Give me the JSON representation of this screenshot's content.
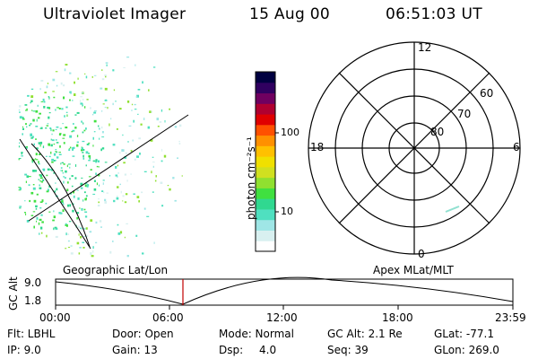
{
  "header": {
    "instrument": "Ultraviolet Imager",
    "date": "15 Aug 00",
    "time": "06:51:03 UT"
  },
  "colorbar": {
    "unit_label": "photon cm⁻²s⁻¹",
    "ticks": [
      "100",
      "10"
    ],
    "colors": [
      "#ffffff",
      "#d8f0f0",
      "#9fe6e6",
      "#4fe0c0",
      "#30d890",
      "#40e040",
      "#90e030",
      "#d0e020",
      "#f0e000",
      "#ffc000",
      "#ff9000",
      "#ff5000",
      "#e00000",
      "#b00030",
      "#700060",
      "#300060",
      "#000040"
    ]
  },
  "polar_plot": {
    "mlt_labels": {
      "top": "12",
      "left": "18",
      "right": "6",
      "bottom": "0"
    },
    "lat_labels": [
      "80",
      "70",
      "60"
    ]
  },
  "timeline": {
    "left_label": "Geographic Lat/Lon",
    "right_label": "Apex MLat/MLT",
    "axis_title": "GC Alt",
    "y_ticks": [
      "9.0",
      "1.8"
    ],
    "x_ticks": [
      "00:00",
      "06:00",
      "12:00",
      "18:00",
      "23:59"
    ],
    "marker_color": "#c00000"
  },
  "info_panel": {
    "filter": "Flt:  LBHL",
    "ip": "IP:  9.0",
    "door": "Door: Open",
    "gain": "Gain: 13",
    "mode": "Mode: Normal",
    "dsp_label": "Dsp:",
    "dsp_value": "4.0",
    "gc_alt": "GC Alt: 2.1 Re",
    "seq": "Seq: 39",
    "glat": "GLat: -77.1",
    "glon": "GLon: 269.0"
  }
}
